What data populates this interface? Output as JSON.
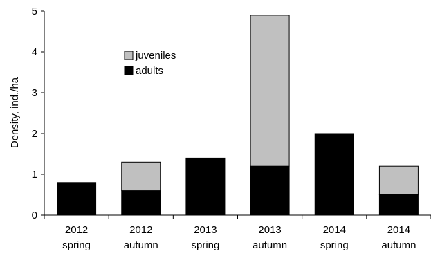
{
  "chart_data": {
    "type": "bar",
    "stacked": true,
    "categories": [
      [
        "2012",
        "spring"
      ],
      [
        "2012",
        "autumn"
      ],
      [
        "2013",
        "spring"
      ],
      [
        "2013",
        "autumn"
      ],
      [
        "2014",
        "spring"
      ],
      [
        "2014",
        "autumn"
      ]
    ],
    "series": [
      {
        "name": "adults",
        "color": "#000000",
        "values": [
          0.8,
          0.6,
          1.4,
          1.2,
          2.0,
          0.5
        ]
      },
      {
        "name": "juveniles",
        "color": "#c0c0c0",
        "values": [
          0.0,
          0.7,
          0.0,
          3.7,
          0.0,
          0.7
        ]
      }
    ],
    "title": "",
    "xlabel": "",
    "ylabel": "Density, ind./ha",
    "ylim": [
      0,
      5
    ],
    "yticks": [
      "0",
      "1",
      "2",
      "3",
      "4",
      "5"
    ],
    "grid": false,
    "legend": {
      "position": "upper-center-left",
      "order": [
        "juveniles",
        "adults"
      ]
    }
  }
}
